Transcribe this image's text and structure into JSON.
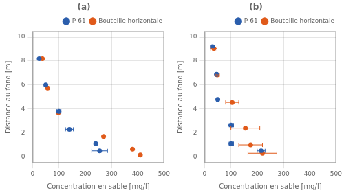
{
  "chart_data": [
    {
      "type": "scatter",
      "title": "(a)",
      "xlabel": "Concentration en sable [mg/l]",
      "ylabel": "Distance au fond [m]",
      "xlim": [
        0,
        500
      ],
      "ylim": [
        -0.5,
        10.5
      ],
      "xticks": [
        0,
        100,
        200,
        300,
        400,
        500
      ],
      "yticks": [
        0,
        2,
        4,
        6,
        8,
        10
      ],
      "grid": true,
      "legend": "upper right",
      "series": [
        {
          "name": "P-61",
          "color": "#2b5eac",
          "x": [
            25,
            50,
            100,
            140,
            240,
            255
          ],
          "values": [
            8.2,
            6.0,
            3.8,
            2.3,
            1.1,
            0.5
          ],
          "xerr": [
            0,
            5,
            8,
            15,
            0,
            30
          ]
        },
        {
          "name": "Bouteille horizontale",
          "color": "#e05a1a",
          "x": [
            37,
            57,
            98,
            270,
            380,
            410
          ],
          "values": [
            8.2,
            5.75,
            3.7,
            1.7,
            0.65,
            0.15
          ]
        }
      ]
    },
    {
      "type": "scatter",
      "title": "(b)",
      "xlabel": "Concentration en sable [mg/l]",
      "ylabel": "Distance au fond [m]",
      "xlim": [
        0,
        500
      ],
      "ylim": [
        -0.5,
        10.5
      ],
      "xticks": [
        0,
        100,
        200,
        300,
        400,
        500
      ],
      "yticks": [
        0,
        2,
        4,
        6,
        8,
        10
      ],
      "grid": true,
      "legend": "upper right",
      "series": [
        {
          "name": "P-61",
          "color": "#2b5eac",
          "x": [
            30,
            45,
            50,
            100,
            100,
            215
          ],
          "values": [
            9.2,
            6.9,
            4.8,
            2.65,
            1.1,
            0.5
          ],
          "xerr": [
            8,
            5,
            5,
            10,
            10,
            15
          ]
        },
        {
          "name": "Bouteille horizontale",
          "color": "#e05a1a",
          "x": [
            35,
            48,
            105,
            155,
            175,
            220
          ],
          "values": [
            9.05,
            6.85,
            4.55,
            2.4,
            1.0,
            0.3
          ],
          "xerr": [
            12,
            8,
            25,
            55,
            45,
            55
          ]
        }
      ]
    }
  ]
}
